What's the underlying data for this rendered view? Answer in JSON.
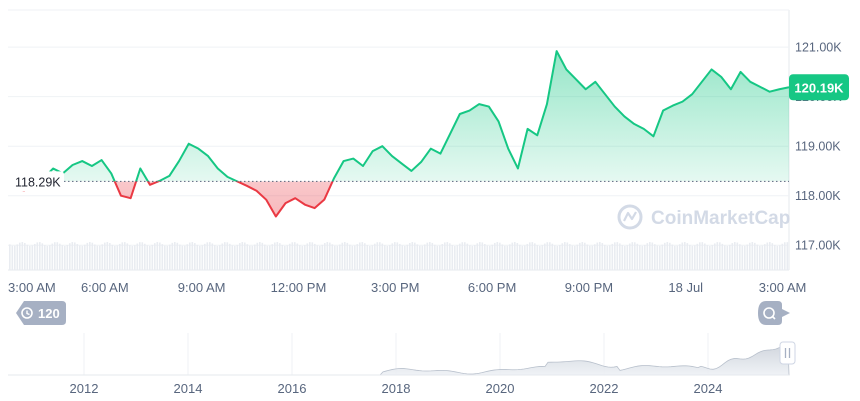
{
  "chart_data": {
    "type": "line",
    "y_ticks": [
      "121.00K",
      "120.00K",
      "119.00K",
      "118.00K",
      "117.00K"
    ],
    "ylim": [
      116.5,
      121.75
    ],
    "x_ticks": [
      "3:00 AM",
      "6:00 AM",
      "9:00 AM",
      "12:00 PM",
      "3:00 PM",
      "6:00 PM",
      "9:00 PM",
      "18 Jul",
      "3:00 AM"
    ],
    "baseline": {
      "value": 118.29,
      "label": "118.29K"
    },
    "current_price": {
      "value": 120.19,
      "label": "120.19K"
    },
    "series": [
      {
        "x": [
          0,
          0.5,
          0.8,
          1.1,
          1.4,
          1.7,
          2.0,
          2.3,
          2.6,
          2.9,
          3.2,
          3.5,
          3.8,
          4.1,
          4.4,
          4.7,
          5.0,
          5.3,
          5.6,
          5.9,
          6.2,
          6.5,
          6.8,
          7.1,
          7.4,
          7.7,
          8.0,
          8.3,
          8.6,
          8.9,
          9.2,
          9.5,
          9.8,
          10.1,
          10.4,
          10.7,
          11.0,
          11.3,
          11.6,
          11.9,
          12.2,
          12.5,
          12.8,
          13.1,
          13.4,
          13.7,
          14.0,
          14.3,
          14.6,
          14.9,
          15.2,
          15.5,
          15.8,
          16.1,
          16.4,
          16.7,
          17.0,
          17.3,
          17.6,
          17.9,
          18.2,
          18.5,
          18.8,
          19.1,
          19.4,
          19.7,
          20.0,
          20.3,
          20.6,
          20.9,
          21.2,
          21.5,
          21.8,
          22.1,
          22.4,
          22.7,
          23.0,
          23.3,
          23.6,
          23.9,
          24.2
        ],
        "y": [
          118.2,
          118.1,
          118.45,
          118.35,
          118.55,
          118.45,
          118.62,
          118.7,
          118.6,
          118.72,
          118.45,
          118.0,
          117.95,
          118.55,
          118.22,
          118.3,
          118.4,
          118.7,
          119.05,
          118.95,
          118.8,
          118.55,
          118.38,
          118.29,
          118.2,
          118.1,
          117.92,
          117.58,
          117.85,
          117.95,
          117.82,
          117.75,
          117.92,
          118.35,
          118.7,
          118.75,
          118.6,
          118.9,
          119.0,
          118.8,
          118.65,
          118.5,
          118.68,
          118.95,
          118.85,
          119.25,
          119.65,
          119.72,
          119.85,
          119.8,
          119.5,
          118.95,
          118.55,
          119.35,
          119.22,
          119.85,
          120.92,
          120.55,
          120.35,
          120.15,
          120.3,
          120.05,
          119.8,
          119.6,
          119.45,
          119.35,
          119.2,
          119.72,
          119.82,
          119.9,
          120.05,
          120.3,
          120.55,
          120.4,
          120.15,
          120.5,
          120.3,
          120.2,
          120.1,
          120.15,
          120.19
        ]
      }
    ],
    "navigator": {
      "x_ticks": [
        "2012",
        "2014",
        "2016",
        "2018",
        "2020",
        "2022",
        "2024"
      ]
    },
    "colors": {
      "up": "#16c784",
      "down": "#ea3943",
      "axis": "#58667e",
      "grid": "#eff2f5"
    }
  },
  "controls": {
    "range_label": "120"
  },
  "watermark": "CoinMarketCap"
}
